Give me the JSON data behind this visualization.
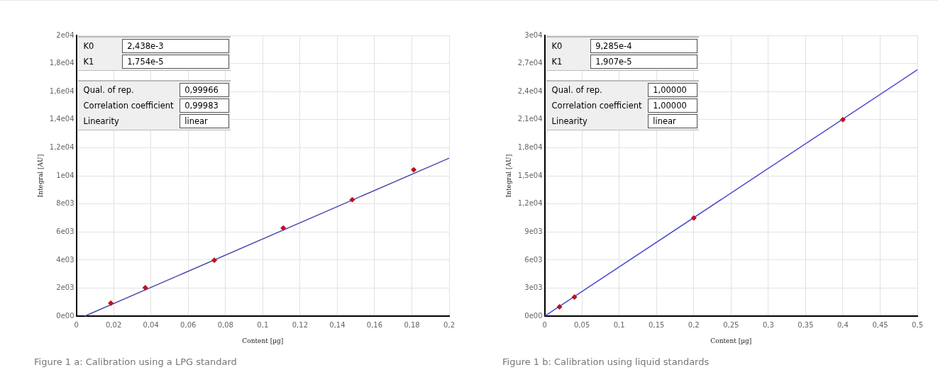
{
  "chart_data": [
    {
      "type": "scatter",
      "xlabel": "Content [µg]",
      "ylabel": "Integral [AU]",
      "xlim": [
        0,
        0.2
      ],
      "xticks": [
        0,
        {
          "value": 0.02,
          "label": "0,02"
        },
        {
          "value": 0.04,
          "label": "0,04"
        },
        {
          "value": 0.06,
          "label": "0,06"
        },
        {
          "value": 0.08,
          "label": "0,08"
        },
        {
          "value": 0.1,
          "label": "0,1"
        },
        {
          "value": 0.12,
          "label": "0,12"
        },
        {
          "value": 0.14,
          "label": "0,14"
        },
        {
          "value": 0.16,
          "label": "0,16"
        },
        {
          "value": 0.18,
          "label": "0,18"
        },
        {
          "value": 0.2,
          "label": "0,2"
        }
      ],
      "ylim": [
        0,
        20000
      ],
      "yticks": [
        {
          "value": 0,
          "label": "0e00"
        },
        {
          "value": 2000,
          "label": "2e03"
        },
        {
          "value": 4000,
          "label": "4e03"
        },
        {
          "value": 6000,
          "label": "6e03"
        },
        {
          "value": 8000,
          "label": "8e03"
        },
        {
          "value": 10000,
          "label": "1e04"
        },
        {
          "value": 12000,
          "label": "1,2e04"
        },
        {
          "value": 14000,
          "label": "1,4e04"
        },
        {
          "value": 16000,
          "label": "1,6e04"
        },
        {
          "value": 18000,
          "label": "1,8e04"
        },
        {
          "value": 20000,
          "label": "2e04"
        }
      ],
      "grid": true,
      "series": [
        {
          "type": "line",
          "color": "#4c4cae",
          "marker": "none",
          "x": [
            0.0043,
            0.2
          ],
          "values": [
            0,
            11260
          ]
        },
        {
          "type": "scatter",
          "color": "#c0101a",
          "marker": "diamond",
          "x": [
            0.0185,
            0.037,
            0.074,
            0.111,
            0.148,
            0.181
          ],
          "values": [
            930,
            2030,
            3990,
            6280,
            8300,
            10430
          ]
        }
      ],
      "annotations": [
        "K0",
        "2,438e-3",
        "K1",
        "1,754e-5",
        "Qual. of rep.",
        "0,99966",
        "Correlation coefficient",
        "0,99983",
        "Linearity",
        "linear",
        "Figure 1 a: Calibration using a LPG standard"
      ]
    },
    {
      "type": "scatter",
      "xlabel": "Content [µg]",
      "ylabel": "Integral [AU]",
      "xlim": [
        0,
        0.5
      ],
      "xticks": [
        0,
        {
          "value": 0.05,
          "label": "0,05"
        },
        {
          "value": 0.1,
          "label": "0,1"
        },
        {
          "value": 0.15,
          "label": "0,15"
        },
        {
          "value": 0.2,
          "label": "0,2"
        },
        {
          "value": 0.25,
          "label": "0,25"
        },
        {
          "value": 0.3,
          "label": "0,3"
        },
        {
          "value": 0.35,
          "label": "0,35"
        },
        {
          "value": 0.4,
          "label": "0,4"
        },
        {
          "value": 0.45,
          "label": "0,45"
        },
        {
          "value": 0.5,
          "label": "0,5"
        }
      ],
      "ylim": [
        0,
        30000
      ],
      "yticks": [
        {
          "value": 0,
          "label": "0e00"
        },
        {
          "value": 3000,
          "label": "3e03"
        },
        {
          "value": 6000,
          "label": "6e03"
        },
        {
          "value": 9000,
          "label": "9e03"
        },
        {
          "value": 12000,
          "label": "1,2e04"
        },
        {
          "value": 15000,
          "label": "1,5e04"
        },
        {
          "value": 18000,
          "label": "1,8e04"
        },
        {
          "value": 21000,
          "label": "2,1e04"
        },
        {
          "value": 24000,
          "label": "2,4e04"
        },
        {
          "value": 27000,
          "label": "2,7e04"
        },
        {
          "value": 30000,
          "label": "3e04"
        }
      ],
      "grid": true,
      "series": [
        {
          "type": "line",
          "color": "#4c4cd0",
          "marker": "none",
          "x": [
            0,
            0.5
          ],
          "values": [
            0,
            26330
          ]
        },
        {
          "type": "scatter",
          "color": "#c0101a",
          "marker": "diamond",
          "x": [
            0.02,
            0.04,
            0.2,
            0.4
          ],
          "values": [
            1000,
            2050,
            10500,
            21000
          ]
        }
      ],
      "annotations": [
        "K0",
        "9,285e-4",
        "K1",
        "1,907e-5",
        "Qual. of rep.",
        "1,00000",
        "Correlation coefficient",
        "1,00000",
        "Linearity",
        "linear",
        "Figure 1 b: Calibration using liquid standards"
      ]
    }
  ]
}
